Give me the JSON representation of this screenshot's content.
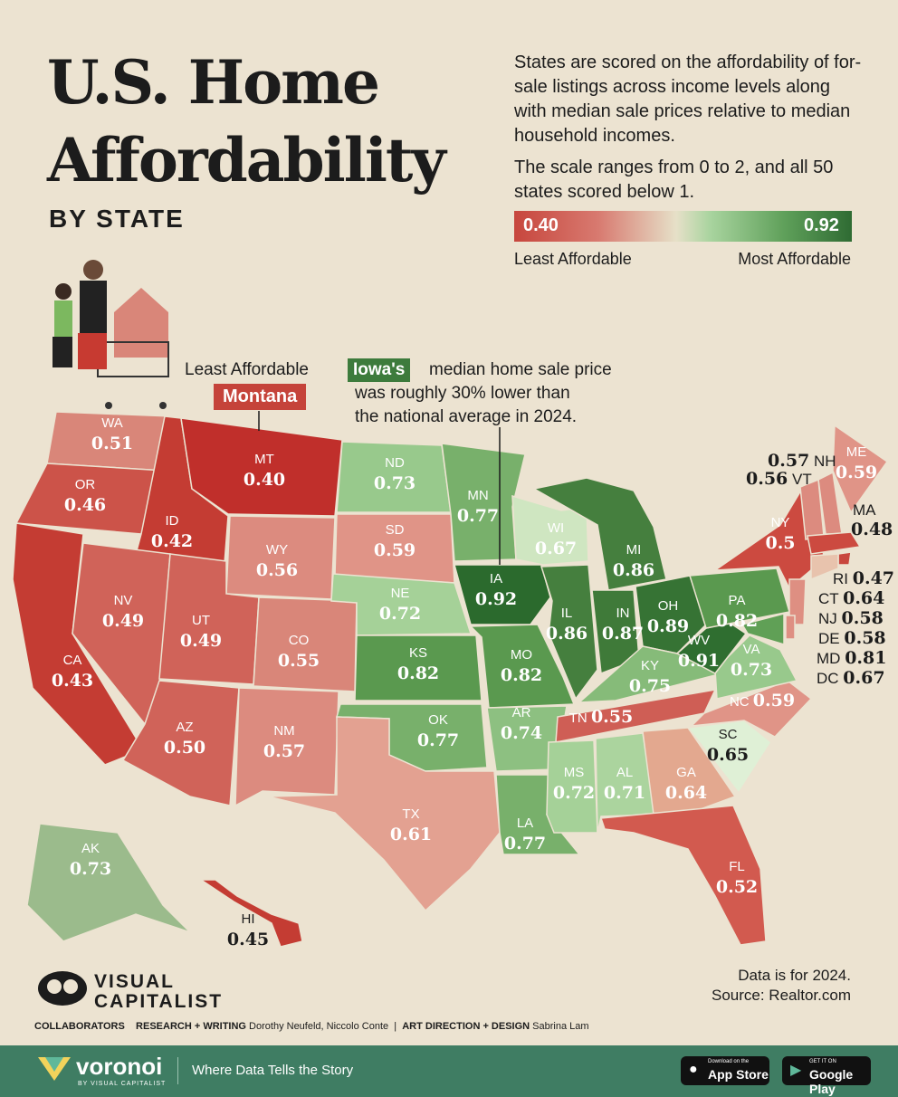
{
  "header": {
    "title_line1": "U.S. Home",
    "title_line2": "Affordability",
    "subtitle": "BY STATE",
    "intro": "States are scored on the affordability of for-sale listings across income levels along with median sale prices relative to median household incomes.",
    "scale_note": "The scale ranges from 0 to 2, and all 50 states scored below 1."
  },
  "legend": {
    "min": "0.40",
    "max": "0.92",
    "left_label": "Least Affordable",
    "right_label": "Most Affordable",
    "colors": {
      "least": "#c5433a",
      "mid": "#e6e0c8",
      "most": "#2f6b33"
    }
  },
  "callouts": {
    "least_label": "Least Affordable",
    "least_state": "Montana",
    "iowa_badge": "Iowa's",
    "iowa_line1": "median home sale price",
    "iowa_line2": "was roughly 30% lower than",
    "iowa_line3": "the national average in 2024."
  },
  "states": {
    "WA": {
      "abbr": "WA",
      "value": "0.51",
      "color": "#d98679"
    },
    "OR": {
      "abbr": "OR",
      "value": "0.46",
      "color": "#cc5349"
    },
    "CA": {
      "abbr": "CA",
      "value": "0.43",
      "color": "#c43c33"
    },
    "ID": {
      "abbr": "ID",
      "value": "0.42",
      "color": "#c43c33"
    },
    "NV": {
      "abbr": "NV",
      "value": "0.49",
      "color": "#d06359"
    },
    "MT": {
      "abbr": "MT",
      "value": "0.40",
      "color": "#c02f2b"
    },
    "WY": {
      "abbr": "WY",
      "value": "0.56",
      "color": "#dc8b7f"
    },
    "UT": {
      "abbr": "UT",
      "value": "0.49",
      "color": "#d06359"
    },
    "CO": {
      "abbr": "CO",
      "value": "0.55",
      "color": "#d98679"
    },
    "AZ": {
      "abbr": "AZ",
      "value": "0.50",
      "color": "#d06359"
    },
    "NM": {
      "abbr": "NM",
      "value": "0.57",
      "color": "#dc8b7f"
    },
    "ND": {
      "abbr": "ND",
      "value": "0.73",
      "color": "#98c98c"
    },
    "SD": {
      "abbr": "SD",
      "value": "0.59",
      "color": "#e09487"
    },
    "NE": {
      "abbr": "NE",
      "value": "0.72",
      "color": "#a5d198"
    },
    "KS": {
      "abbr": "KS",
      "value": "0.82",
      "color": "#5a994f"
    },
    "OK": {
      "abbr": "OK",
      "value": "0.77",
      "color": "#78b06b"
    },
    "TX": {
      "abbr": "TX",
      "value": "0.61",
      "color": "#e3a191"
    },
    "MN": {
      "abbr": "MN",
      "value": "0.77",
      "color": "#78b06b"
    },
    "IA": {
      "abbr": "IA",
      "value": "0.92",
      "color": "#2b6a2d"
    },
    "MO": {
      "abbr": "MO",
      "value": "0.82",
      "color": "#5a994f"
    },
    "AR": {
      "abbr": "AR",
      "value": "0.74",
      "color": "#8dc081"
    },
    "LA": {
      "abbr": "LA",
      "value": "0.77",
      "color": "#78b06b"
    },
    "WI": {
      "abbr": "WI",
      "value": "0.67",
      "color": "#cfe6c1"
    },
    "IL": {
      "abbr": "IL",
      "value": "0.86",
      "color": "#457f3e"
    },
    "MI": {
      "abbr": "MI",
      "value": "0.86",
      "color": "#457f3e"
    },
    "IN": {
      "abbr": "IN",
      "value": "0.87",
      "color": "#3f7a39"
    },
    "OH": {
      "abbr": "OH",
      "value": "0.89",
      "color": "#367334"
    },
    "KY": {
      "abbr": "KY",
      "value": "0.75",
      "color": "#86bb79"
    },
    "TN": {
      "abbr": "TN",
      "value": "0.55",
      "color": "#cf5e55"
    },
    "MS": {
      "abbr": "MS",
      "value": "0.72",
      "color": "#a5d198"
    },
    "AL": {
      "abbr": "AL",
      "value": "0.71",
      "color": "#abd49e"
    },
    "GA": {
      "abbr": "GA",
      "value": "0.64",
      "color": "#e3a88f"
    },
    "FL": {
      "abbr": "FL",
      "value": "0.52",
      "color": "#d25a4f"
    },
    "SC": {
      "abbr": "SC",
      "value": "0.65",
      "color": "#dff0d6"
    },
    "NC": {
      "abbr": "NC",
      "value": "0.59",
      "color": "#e09487"
    },
    "VA": {
      "abbr": "VA",
      "value": "0.73",
      "color": "#98c98c"
    },
    "WV": {
      "abbr": "WV",
      "value": "0.91",
      "color": "#2f6e30"
    },
    "PA": {
      "abbr": "PA",
      "value": "0.82",
      "color": "#5a994f"
    },
    "NY": {
      "abbr": "NY",
      "value": "0.5",
      "color": "#cc4a40"
    },
    "ME": {
      "abbr": "ME",
      "value": "0.59",
      "color": "#e09487"
    },
    "NH": {
      "abbr": "NH",
      "value": "0.57",
      "color": "#dc8b7f"
    },
    "VT": {
      "abbr": "VT",
      "value": "0.56",
      "color": "#dc8b7f"
    },
    "MA": {
      "abbr": "MA",
      "value": "0.48",
      "color": "#cc4a40"
    },
    "RI": {
      "abbr": "RI",
      "value": "0.47",
      "color": "#c8463d"
    },
    "CT": {
      "abbr": "CT",
      "value": "0.64",
      "color": "#e8c3ad"
    },
    "NJ": {
      "abbr": "NJ",
      "value": "0.58",
      "color": "#de8f82"
    },
    "DE": {
      "abbr": "DE",
      "value": "0.58",
      "color": "#de8f82"
    },
    "MD": {
      "abbr": "MD",
      "value": "0.81",
      "color": "#60a056"
    },
    "DC": {
      "abbr": "DC",
      "value": "0.67",
      "color": "#cfe6c1"
    },
    "AK": {
      "abbr": "AK",
      "value": "0.73",
      "color": "#9bbb8c"
    },
    "HI": {
      "abbr": "HI",
      "value": "0.45",
      "color": "#c43c33"
    }
  },
  "notes": {
    "data_year": "Data is for 2024.",
    "source": "Source: Realtor.com"
  },
  "credits": {
    "brand_line1": "VISUAL",
    "brand_line2": "CAPITALIST",
    "collaborators": "COLLABORATORS",
    "research_label": "RESEARCH + WRITING",
    "research_names": "Dorothy Neufeld, Niccolo Conte",
    "art_label": "ART DIRECTION + DESIGN",
    "art_names": "Sabrina Lam"
  },
  "footer": {
    "brand": "voronoi",
    "brand_sub": "BY VISUAL CAPITALIST",
    "tagline": "Where Data Tells the Story",
    "appstore_small": "Download on the",
    "appstore_big": "App Store",
    "gplay_small": "GET IT ON",
    "gplay_big": "Google Play"
  }
}
